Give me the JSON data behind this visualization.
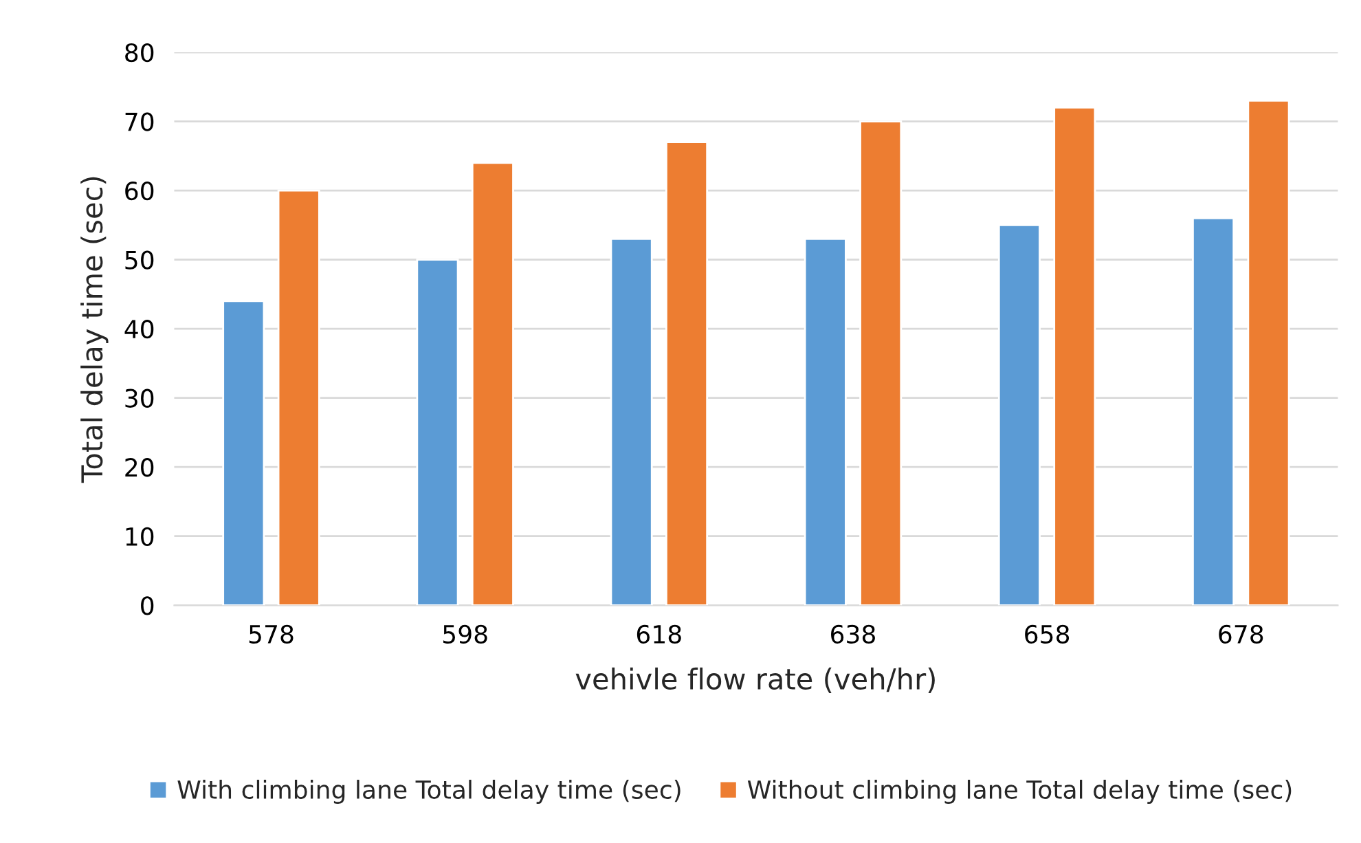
{
  "chart_data": {
    "type": "bar",
    "xlabel": "vehivle flow rate (veh/hr)",
    "ylabel": "Total delay time (sec)",
    "categories": [
      "578",
      "598",
      "618",
      "638",
      "658",
      "678"
    ],
    "series": [
      {
        "name": "With climbing lane Total delay time (sec)",
        "color": "#5b9bd5",
        "values": [
          44,
          50,
          53,
          53,
          55,
          56
        ]
      },
      {
        "name": "Without climbing lane Total delay time (sec)",
        "color": "#ed7d31",
        "values": [
          60,
          64,
          67,
          70,
          72,
          73
        ]
      }
    ],
    "ylim": [
      0,
      80
    ],
    "yticks": [
      0,
      10,
      20,
      30,
      40,
      50,
      60,
      70,
      80
    ],
    "grid": "y",
    "legend": "bottom"
  }
}
